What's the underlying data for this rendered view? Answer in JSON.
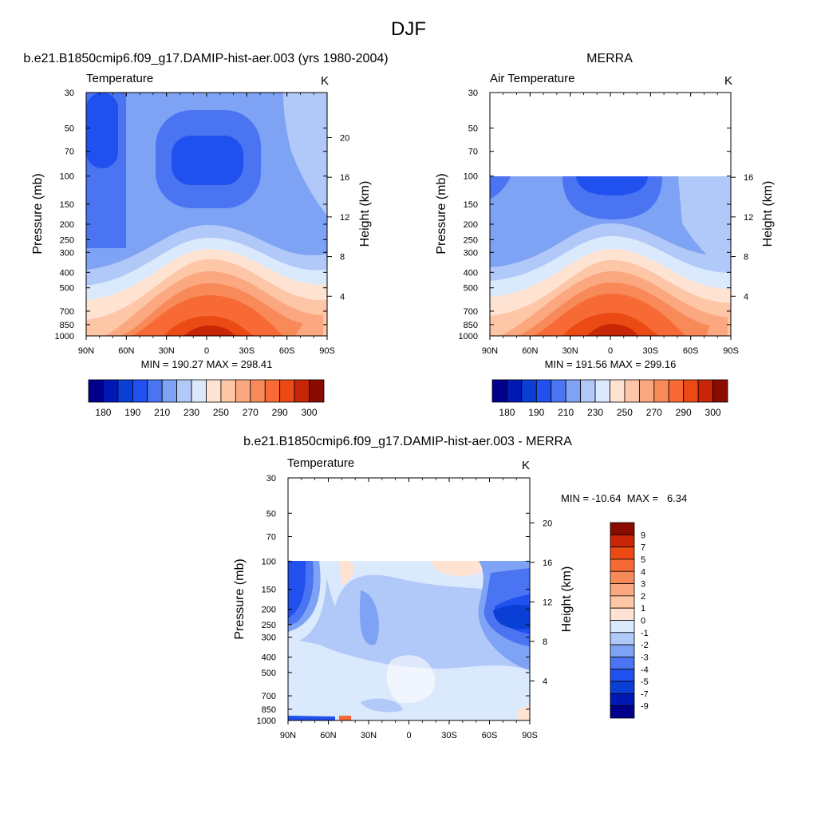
{
  "figure": {
    "title": "DJF"
  },
  "chart_data": [
    {
      "type": "heatmap",
      "id": "model",
      "title": "b.e21.B1850cmip6.f09_g17.DAMIP-hist-aer.003 (yrs 1980-2004)",
      "left_label": "Temperature",
      "unit_label": "K",
      "ylabel": "Pressure (mb)",
      "ylabel_right": "Height (km)",
      "x_ticks": [
        "90N",
        "60N",
        "30N",
        "0",
        "30S",
        "60S",
        "90S"
      ],
      "y_ticks": [
        "30",
        "50",
        "70",
        "100",
        "150",
        "200",
        "250",
        "300",
        "400",
        "500",
        "700",
        "850",
        "1000"
      ],
      "y_ticks_right": [
        "20",
        "16",
        "12",
        "8",
        "4"
      ],
      "ylim": [
        1000,
        30
      ],
      "x_range": [
        90,
        -90
      ],
      "stats": "MIN = 190.27  MAX = 298.41",
      "min": 190.27,
      "max": 298.41,
      "colorbar": {
        "orientation": "horizontal",
        "tick_labels": [
          "180",
          "190",
          "210",
          "230",
          "250",
          "270",
          "290",
          "300"
        ]
      }
    },
    {
      "type": "heatmap",
      "id": "obs",
      "title": "MERRA",
      "left_label": "Air Temperature",
      "unit_label": "K",
      "ylabel": "Pressure (mb)",
      "ylabel_right": "Height (km)",
      "x_ticks": [
        "90N",
        "60N",
        "30N",
        "0",
        "30S",
        "60S",
        "90S"
      ],
      "y_ticks": [
        "30",
        "50",
        "70",
        "100",
        "150",
        "200",
        "250",
        "300",
        "400",
        "500",
        "700",
        "850",
        "1000"
      ],
      "y_ticks_right": [
        "16",
        "12",
        "8",
        "4"
      ],
      "ylim": [
        1000,
        30
      ],
      "data_top_mb": 100,
      "stats": "MIN = 191.56  MAX = 299.16",
      "min": 191.56,
      "max": 299.16,
      "colorbar": {
        "orientation": "horizontal",
        "tick_labels": [
          "180",
          "190",
          "210",
          "230",
          "250",
          "270",
          "290",
          "300"
        ]
      }
    },
    {
      "type": "heatmap",
      "id": "diff",
      "title": "b.e21.B1850cmip6.f09_g17.DAMIP-hist-aer.003 - MERRA",
      "left_label": "Temperature",
      "unit_label": "K",
      "ylabel": "Pressure (mb)",
      "ylabel_right": "Height (km)",
      "x_ticks": [
        "90N",
        "60N",
        "30N",
        "0",
        "30S",
        "60S",
        "90S"
      ],
      "y_ticks": [
        "30",
        "50",
        "70",
        "100",
        "150",
        "200",
        "250",
        "300",
        "400",
        "500",
        "700",
        "850",
        "1000"
      ],
      "y_ticks_right": [
        "20",
        "16",
        "12",
        "8",
        "4"
      ],
      "ylim": [
        1000,
        30
      ],
      "data_top_mb": 100,
      "stats": "MIN = -10.64  MAX =   6.34",
      "min": -10.64,
      "max": 6.34,
      "colorbar": {
        "orientation": "vertical",
        "tick_labels": [
          "9",
          "7",
          "5",
          "4",
          "3",
          "2",
          "1",
          "0",
          "-1",
          "-2",
          "-3",
          "-4",
          "-5",
          "-7",
          "-9"
        ]
      }
    }
  ],
  "palette": [
    "#00008c",
    "#0019b4",
    "#0a3fd6",
    "#2050ee",
    "#4a74f2",
    "#7ea2f4",
    "#b1c9f8",
    "#dbe9fd",
    "#ffe3d2",
    "#fdc6a6",
    "#fba77f",
    "#f88a5a",
    "#f76a35",
    "#ec4a14",
    "#c82607",
    "#8a0c00"
  ]
}
